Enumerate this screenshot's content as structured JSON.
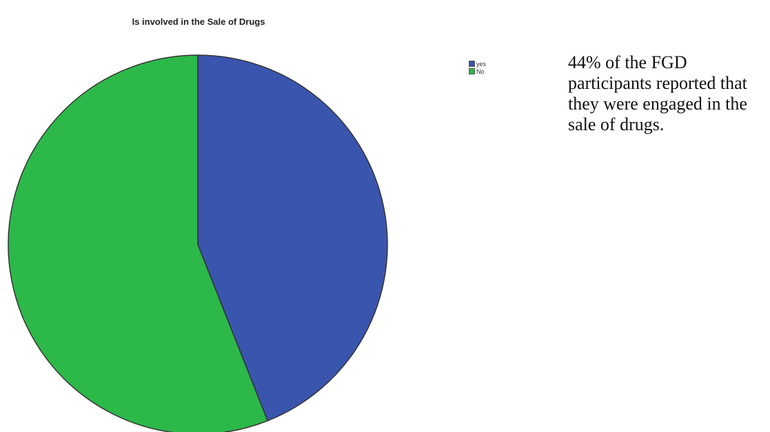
{
  "chart_data": {
    "type": "pie",
    "title": "Is involved in the Sale of Drugs",
    "categories": [
      "yes",
      "No"
    ],
    "values": [
      44,
      56
    ],
    "colors": [
      "#3a55ad",
      "#2db84a"
    ],
    "legend": "top-right"
  },
  "caption": {
    "text": "44% of the FGD participants reported that they were engaged in the sale of drugs."
  }
}
